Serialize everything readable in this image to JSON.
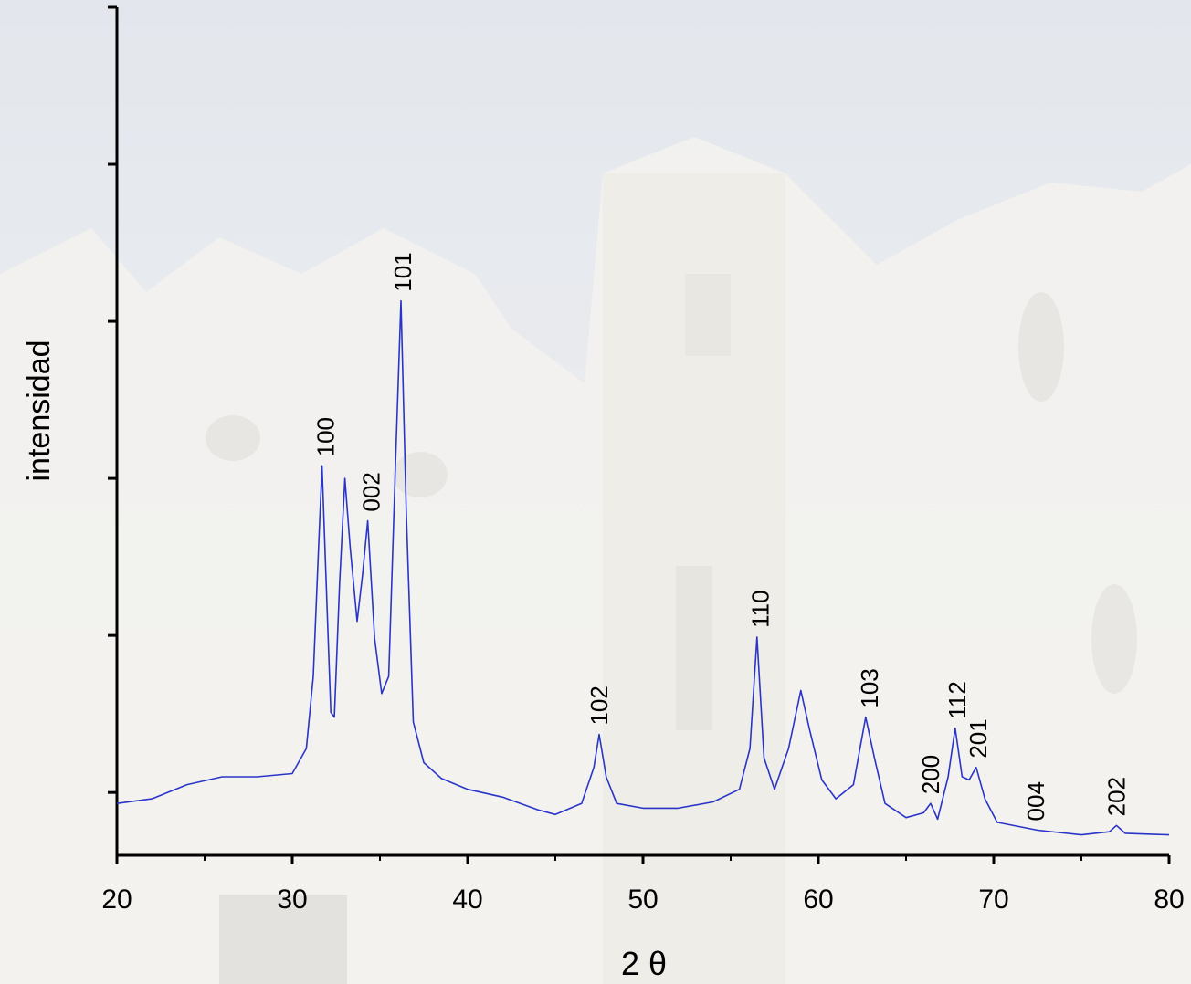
{
  "chart_data": {
    "type": "line",
    "xlabel": "2 θ",
    "ylabel": "intensidad",
    "color": "#2a35c8",
    "xlim": [
      20,
      80
    ],
    "xticks": [
      20,
      30,
      40,
      50,
      60,
      70,
      80
    ],
    "xminorticks": [
      25,
      35,
      45,
      55,
      65,
      75
    ],
    "ylim": [
      0.6,
      6
    ],
    "yticks": [
      1,
      2,
      3,
      4,
      5,
      6
    ],
    "x": [
      20,
      22,
      24,
      26,
      28,
      30,
      30.8,
      31.2,
      31.5,
      31.7,
      31.9,
      32.2,
      32.4,
      32.7,
      33.0,
      33.3,
      33.7,
      34.0,
      34.3,
      34.7,
      35.1,
      35.5,
      35.9,
      36.2,
      36.5,
      36.9,
      37.5,
      38.5,
      40,
      42,
      44,
      45,
      46.5,
      47.2,
      47.5,
      47.9,
      48.5,
      50,
      52,
      54,
      55.5,
      56.1,
      56.5,
      56.9,
      57.5,
      58.3,
      59.0,
      59.5,
      60.2,
      61.0,
      62.0,
      62.7,
      63.2,
      63.8,
      65.0,
      66.0,
      66.4,
      66.8,
      67.4,
      67.8,
      68.2,
      68.6,
      69.0,
      69.5,
      70.2,
      72.5,
      75,
      76.6,
      77.0,
      77.5,
      80
    ],
    "values": [
      0.93,
      0.96,
      1.05,
      1.1,
      1.1,
      1.12,
      1.28,
      1.74,
      2.56,
      3.08,
      2.44,
      1.51,
      1.48,
      2.33,
      3.0,
      2.56,
      2.09,
      2.38,
      2.73,
      1.98,
      1.63,
      1.74,
      3.14,
      4.13,
      2.79,
      1.45,
      1.19,
      1.09,
      1.02,
      0.97,
      0.89,
      0.86,
      0.93,
      1.16,
      1.37,
      1.1,
      0.93,
      0.9,
      0.9,
      0.94,
      1.02,
      1.28,
      1.99,
      1.22,
      1.02,
      1.28,
      1.65,
      1.4,
      1.08,
      0.96,
      1.05,
      1.48,
      1.22,
      0.93,
      0.84,
      0.87,
      0.93,
      0.83,
      1.1,
      1.41,
      1.1,
      1.08,
      1.16,
      0.96,
      0.81,
      0.76,
      0.73,
      0.75,
      0.79,
      0.74,
      0.73
    ],
    "annotations": [
      {
        "text": "100",
        "x": 31.9
      },
      {
        "text": "002",
        "x": 34.5
      },
      {
        "text": "101",
        "x": 36.3
      },
      {
        "text": "102",
        "x": 47.5
      },
      {
        "text": "110",
        "x": 56.7
      },
      {
        "text": "103",
        "x": 62.9
      },
      {
        "text": "200",
        "x": 66.4
      },
      {
        "text": "112",
        "x": 67.9
      },
      {
        "text": "201",
        "x": 69.1
      },
      {
        "text": "004",
        "x": 72.4
      },
      {
        "text": "202",
        "x": 77.0
      }
    ]
  }
}
